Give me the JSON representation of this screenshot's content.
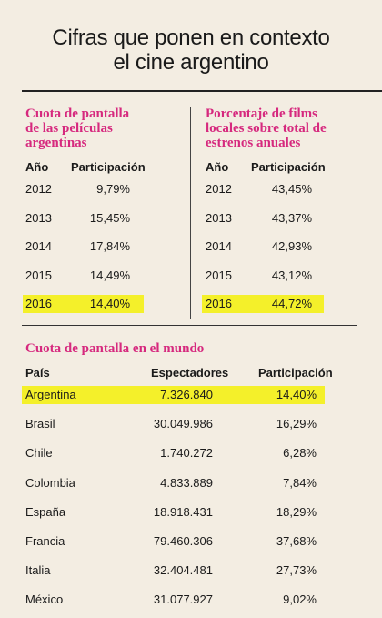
{
  "title": {
    "line1": "Cifras que ponen en contexto",
    "line2": "el cine argentino"
  },
  "left_table": {
    "title_lines": [
      "Cuota de pantalla",
      "de las películas",
      "argentinas"
    ],
    "headers": {
      "year": "Año",
      "value": "Participación"
    },
    "rows": [
      {
        "year": "2012",
        "value": "9,79%"
      },
      {
        "year": "2013",
        "value": "15,45%"
      },
      {
        "year": "2014",
        "value": "17,84%"
      },
      {
        "year": "2015",
        "value": "14,49%"
      },
      {
        "year": "2016",
        "value": "14,40%"
      }
    ],
    "highlight_color": "#f4f02a"
  },
  "right_table": {
    "title_lines": [
      "Porcentaje de films",
      "locales sobre total de",
      "estrenos anuales"
    ],
    "headers": {
      "year": "Año",
      "value": "Participación"
    },
    "rows": [
      {
        "year": "2012",
        "value": "43,45%"
      },
      {
        "year": "2013",
        "value": "43,37%"
      },
      {
        "year": "2014",
        "value": "42,93%"
      },
      {
        "year": "2015",
        "value": "43,12%"
      },
      {
        "year": "2016",
        "value": "44,72%"
      }
    ],
    "highlight_color": "#f4f02a"
  },
  "world_table": {
    "title": "Cuota de pantalla en el mundo",
    "headers": {
      "country": "País",
      "viewers": "Espectadores",
      "share": "Participación"
    },
    "rows": [
      {
        "country": "Argentina",
        "viewers": "7.326.840",
        "share": "14,40%"
      },
      {
        "country": "Brasil",
        "viewers": "30.049.986",
        "share": "16,29%"
      },
      {
        "country": "Chile",
        "viewers": "1.740.272",
        "share": "6,28%"
      },
      {
        "country": "Colombia",
        "viewers": "4.833.889",
        "share": "7,84%"
      },
      {
        "country": "España",
        "viewers": "18.918.431",
        "share": "18,29%"
      },
      {
        "country": "Francia",
        "viewers": "79.460.306",
        "share": "37,68%"
      },
      {
        "country": "Italia",
        "viewers": "32.404.481",
        "share": "27,73%"
      },
      {
        "country": "México",
        "viewers": "31.077.927",
        "share": "9,02%"
      }
    ],
    "highlight_color": "#f4f02a"
  },
  "accent_color": "#d6297e"
}
